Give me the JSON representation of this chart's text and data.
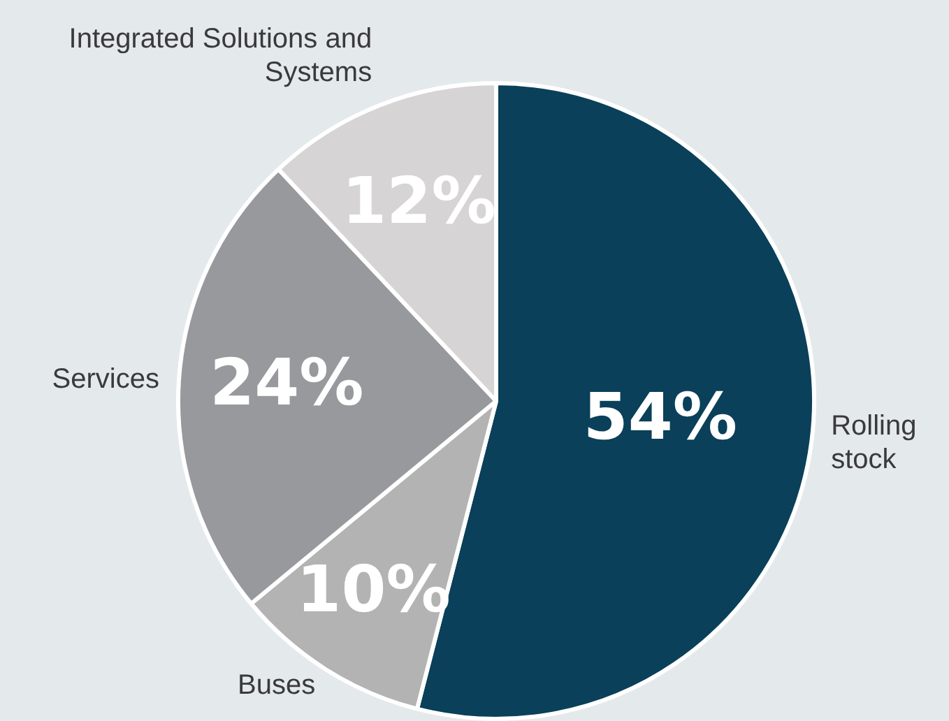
{
  "chart_data": {
    "type": "pie",
    "categories": [
      "Rolling stock",
      "Buses",
      "Services",
      "Integrated Solutions and Systems"
    ],
    "values": [
      54,
      10,
      24,
      12
    ],
    "colors": [
      "#0a4059",
      "#b3b3b3",
      "#97999c",
      "#d6d4d5"
    ],
    "value_labels": [
      "54%",
      "10%",
      "24%",
      "12%"
    ],
    "legend": false
  }
}
